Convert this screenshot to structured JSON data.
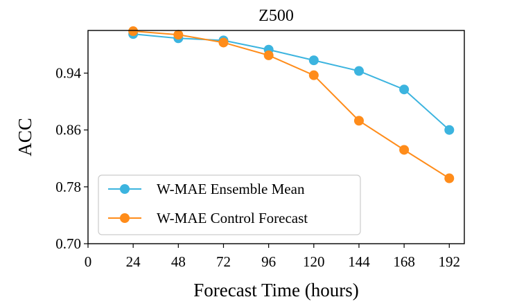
{
  "chart_data": {
    "type": "line",
    "title": "Z500",
    "xlabel": "Forecast Time (hours)",
    "ylabel": "ACC",
    "x": [
      24,
      48,
      72,
      96,
      120,
      144,
      168,
      192
    ],
    "xticks": [
      0,
      24,
      48,
      72,
      96,
      120,
      144,
      168,
      192
    ],
    "xtick_labels": [
      "0",
      "24",
      "48",
      "72",
      "96",
      "120",
      "144",
      "168",
      "192"
    ],
    "yticks": [
      0.7,
      0.78,
      0.86,
      0.94
    ],
    "ytick_labels": [
      "0.70",
      "0.78",
      "0.86",
      "0.94"
    ],
    "xlim": [
      0,
      200
    ],
    "ylim": [
      0.7,
      1.0
    ],
    "grid": false,
    "legend_position": "lower-left",
    "series": [
      {
        "name": "W-MAE Ensemble Mean",
        "color": "#3cb4df",
        "values": [
          0.995,
          0.989,
          0.986,
          0.973,
          0.958,
          0.943,
          0.917,
          0.86
        ]
      },
      {
        "name": "W-MAE Control Forecast",
        "color": "#ff8c1a",
        "values": [
          0.999,
          0.994,
          0.983,
          0.965,
          0.937,
          0.873,
          0.832,
          0.792
        ]
      }
    ]
  }
}
